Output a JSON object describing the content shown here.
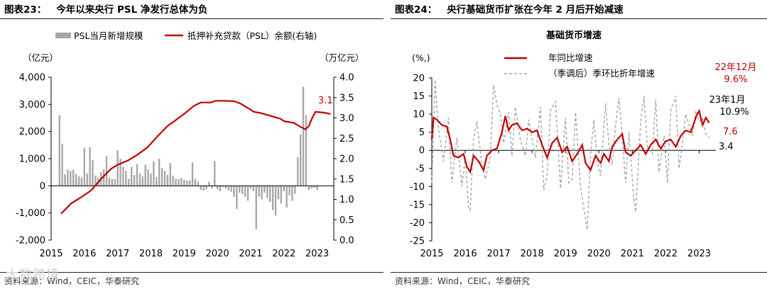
{
  "colors": {
    "red": "#c00000",
    "gray_bar": "#a6a6a6",
    "gray_dash": "#a6a6a6",
    "axis": "#000000"
  },
  "left": {
    "fig_num": "图表23：",
    "fig_title": "今年以来央行 PSL 净发行总体为负",
    "legend_bar": "PSL当月新增规模",
    "legend_line": "抵押补充贷款（PSL）余额(右轴)",
    "y_unit_left": "（亿元）",
    "y_unit_right": "（万亿元）",
    "end_label": "3.1",
    "source": "资料来源：Wind，CEIC，华泰研究"
  },
  "right": {
    "fig_num": "图表24：",
    "fig_title": "央行基础货币扩张在今年 2 月后开始减速",
    "chart_title": "基础货币增速",
    "y_unit": "(%,)",
    "legend_solid": "年同比增速",
    "legend_dash": "（季调后）季环比折年增速",
    "ann_dec_label": "22年12月",
    "ann_dec_value": "9.6%",
    "ann_jan_label": "23年1月",
    "ann_jan_value": "10.9%",
    "ann_last_solid": "7.6",
    "ann_last_dash": "3.4",
    "source": "资料来源：Wind，CEIC，华泰研究"
  },
  "watermark": "大数跨境",
  "chart_data": [
    {
      "type": "bar+line",
      "title": "今年以来央行 PSL 净发行总体为负",
      "x_ticks": [
        "2015",
        "2016",
        "2017",
        "2018",
        "2019",
        "2020",
        "2021",
        "2022",
        "2023"
      ],
      "x_start_year": 2015.0,
      "x_end_year": 2023.5,
      "ylim_left": [
        -2000,
        4000
      ],
      "yticks_left": [
        4000,
        3000,
        2000,
        1000,
        0,
        -1000,
        -2000
      ],
      "ytick_labels_left": [
        "4,000",
        "3,000",
        "2,000",
        "1,000",
        "0",
        "-1,000",
        "-2,000"
      ],
      "ylim_right": [
        0.0,
        4.0
      ],
      "yticks_right": [
        4.0,
        3.5,
        3.0,
        2.5,
        2.0,
        1.5,
        1.0,
        0.5,
        0.0
      ],
      "ytick_labels_right": [
        "4.0",
        "3.5",
        "3.0",
        "2.5",
        "2.0",
        "1.5",
        "1.0",
        "0.5",
        "0.0"
      ],
      "bar_series": {
        "name": "PSL当月新增规模",
        "start": 2015.25,
        "step": 0.0833333,
        "values": [
          2600,
          1550,
          430,
          600,
          550,
          600,
          430,
          350,
          300,
          1400,
          450,
          1420,
          950,
          380,
          300,
          500,
          600,
          1100,
          300,
          250,
          250,
          1300,
          1000,
          700,
          550,
          250,
          700,
          400,
          800,
          450,
          350,
          780,
          600,
          450,
          900,
          320,
          1000,
          650,
          550,
          400,
          840,
          370,
          250,
          250,
          280,
          230,
          200,
          200,
          860,
          250,
          150,
          -150,
          -180,
          -120,
          150,
          -100,
          920,
          -120,
          -200,
          -50,
          -100,
          -180,
          -220,
          -400,
          -850,
          -250,
          -300,
          -400,
          -550,
          -100,
          -200,
          -1600,
          -400,
          -500,
          -250,
          -450,
          -600,
          -900,
          -1100,
          -500,
          -650,
          -200,
          -800,
          -350,
          -550,
          -300,
          1050,
          1900,
          3650,
          2600,
          -150,
          -100,
          -80,
          -150
        ]
      },
      "line_series": {
        "name": "抵押补充贷款（PSL）余额(右轴)",
        "points": [
          [
            2015.3,
            0.65
          ],
          [
            2015.6,
            0.9
          ],
          [
            2015.9,
            1.05
          ],
          [
            2016.2,
            1.22
          ],
          [
            2016.5,
            1.5
          ],
          [
            2016.8,
            1.75
          ],
          [
            2017.0,
            1.85
          ],
          [
            2017.3,
            1.95
          ],
          [
            2017.6,
            2.1
          ],
          [
            2017.9,
            2.28
          ],
          [
            2018.2,
            2.55
          ],
          [
            2018.5,
            2.8
          ],
          [
            2018.8,
            2.98
          ],
          [
            2019.0,
            3.1
          ],
          [
            2019.3,
            3.3
          ],
          [
            2019.5,
            3.38
          ],
          [
            2019.8,
            3.38
          ],
          [
            2019.95,
            3.42
          ],
          [
            2020.2,
            3.42
          ],
          [
            2020.5,
            3.41
          ],
          [
            2020.7,
            3.35
          ],
          [
            2020.9,
            3.25
          ],
          [
            2021.1,
            3.15
          ],
          [
            2021.3,
            3.12
          ],
          [
            2021.6,
            3.05
          ],
          [
            2021.9,
            2.98
          ],
          [
            2022.0,
            2.92
          ],
          [
            2022.3,
            2.88
          ],
          [
            2022.5,
            2.78
          ],
          [
            2022.65,
            2.72
          ],
          [
            2022.75,
            2.8
          ],
          [
            2022.85,
            3.0
          ],
          [
            2022.95,
            3.15
          ],
          [
            2023.2,
            3.13
          ],
          [
            2023.4,
            3.1
          ]
        ]
      }
    },
    {
      "type": "line",
      "title": "基础货币增速",
      "x_ticks": [
        "2015",
        "2016",
        "2017",
        "2018",
        "2019",
        "2020",
        "2021",
        "2022",
        "2023"
      ],
      "x_start_year": 2015.0,
      "x_end_year": 2023.5,
      "ylim": [
        -25,
        20
      ],
      "yticks": [
        20,
        15,
        10,
        5,
        0,
        -5,
        -10,
        -15,
        -20,
        -25
      ],
      "ytick_labels": [
        "20",
        "15",
        "10",
        "5",
        "0",
        "-5",
        "-10",
        "-15",
        "-20",
        "-25"
      ],
      "series": [
        {
          "name": "年同比增速",
          "style": "solid",
          "points": [
            [
              2015.0,
              3.0
            ],
            [
              2015.05,
              9.0
            ],
            [
              2015.15,
              8.5
            ],
            [
              2015.3,
              7.0
            ],
            [
              2015.45,
              6.5
            ],
            [
              2015.55,
              3.0
            ],
            [
              2015.65,
              -1.5
            ],
            [
              2015.8,
              -2.0
            ],
            [
              2015.95,
              -1.0
            ],
            [
              2016.05,
              -4.5
            ],
            [
              2016.15,
              -6.0
            ],
            [
              2016.25,
              -1.5
            ],
            [
              2016.4,
              -3.0
            ],
            [
              2016.55,
              -5.5
            ],
            [
              2016.65,
              -1.5
            ],
            [
              2016.8,
              0.0
            ],
            [
              2016.95,
              0.5
            ],
            [
              2017.1,
              5.0
            ],
            [
              2017.2,
              9.5
            ],
            [
              2017.3,
              5.5
            ],
            [
              2017.4,
              7.0
            ],
            [
              2017.55,
              7.5
            ],
            [
              2017.7,
              5.5
            ],
            [
              2017.85,
              6.0
            ],
            [
              2018.0,
              5.0
            ],
            [
              2018.15,
              5.5
            ],
            [
              2018.3,
              1.5
            ],
            [
              2018.45,
              -2.0
            ],
            [
              2018.6,
              2.0
            ],
            [
              2018.75,
              3.5
            ],
            [
              2018.9,
              -0.5
            ],
            [
              2019.05,
              1.0
            ],
            [
              2019.2,
              -3.0
            ],
            [
              2019.35,
              -1.0
            ],
            [
              2019.5,
              1.5
            ],
            [
              2019.6,
              -3.5
            ],
            [
              2019.75,
              -5.5
            ],
            [
              2019.9,
              -1.5
            ],
            [
              2020.05,
              -3.5
            ],
            [
              2020.15,
              -1.0
            ],
            [
              2020.3,
              -3.0
            ],
            [
              2020.4,
              1.0
            ],
            [
              2020.55,
              3.0
            ],
            [
              2020.7,
              4.5
            ],
            [
              2020.8,
              -0.5
            ],
            [
              2020.95,
              -1.5
            ],
            [
              2021.1,
              0.0
            ],
            [
              2021.25,
              1.5
            ],
            [
              2021.4,
              -1.0
            ],
            [
              2021.55,
              1.5
            ],
            [
              2021.7,
              3.0
            ],
            [
              2021.85,
              0.5
            ],
            [
              2022.0,
              2.5
            ],
            [
              2022.15,
              3.0
            ],
            [
              2022.3,
              1.0
            ],
            [
              2022.45,
              4.0
            ],
            [
              2022.6,
              5.5
            ],
            [
              2022.75,
              5.0
            ],
            [
              2022.92,
              9.6
            ],
            [
              2023.0,
              10.9
            ],
            [
              2023.1,
              7.0
            ],
            [
              2023.2,
              9.0
            ],
            [
              2023.3,
              7.6
            ]
          ]
        },
        {
          "name": "（季调后）季环比折年增速",
          "style": "dashed",
          "points": [
            [
              2015.0,
              -9.0
            ],
            [
              2015.1,
              19.5
            ],
            [
              2015.2,
              6.0
            ],
            [
              2015.35,
              -3.0
            ],
            [
              2015.5,
              9.0
            ],
            [
              2015.6,
              -9.0
            ],
            [
              2015.75,
              3.5
            ],
            [
              2015.9,
              -10.0
            ],
            [
              2016.0,
              -2.0
            ],
            [
              2016.1,
              -16.0
            ],
            [
              2016.15,
              -16.5
            ],
            [
              2016.25,
              3.0
            ],
            [
              2016.35,
              8.0
            ],
            [
              2016.5,
              -4.0
            ],
            [
              2016.6,
              -8.0
            ],
            [
              2016.75,
              -2.0
            ],
            [
              2016.85,
              18.0
            ],
            [
              2016.95,
              12.5
            ],
            [
              2017.05,
              10.0
            ],
            [
              2017.15,
              2.0
            ],
            [
              2017.3,
              10.5
            ],
            [
              2017.4,
              -1.5
            ],
            [
              2017.5,
              12.0
            ],
            [
              2017.65,
              3.0
            ],
            [
              2017.8,
              -1.5
            ],
            [
              2017.9,
              8.5
            ],
            [
              2018.0,
              3.0
            ],
            [
              2018.1,
              -2.0
            ],
            [
              2018.25,
              12.0
            ],
            [
              2018.35,
              -11.0
            ],
            [
              2018.45,
              -7.0
            ],
            [
              2018.55,
              11.0
            ],
            [
              2018.7,
              13.5
            ],
            [
              2018.85,
              -10.5
            ],
            [
              2019.0,
              9.0
            ],
            [
              2019.1,
              -9.0
            ],
            [
              2019.2,
              -8.0
            ],
            [
              2019.3,
              10.5
            ],
            [
              2019.45,
              -10.0
            ],
            [
              2019.55,
              -16.0
            ],
            [
              2019.65,
              -22.0
            ],
            [
              2019.75,
              -1.0
            ],
            [
              2019.85,
              8.5
            ],
            [
              2019.95,
              -3.0
            ],
            [
              2020.05,
              -7.0
            ],
            [
              2020.2,
              13.0
            ],
            [
              2020.3,
              1.5
            ],
            [
              2020.4,
              -4.0
            ],
            [
              2020.5,
              7.0
            ],
            [
              2020.6,
              14.5
            ],
            [
              2020.7,
              4.0
            ],
            [
              2020.8,
              -9.0
            ],
            [
              2020.9,
              5.0
            ],
            [
              2021.05,
              -14.0
            ],
            [
              2021.1,
              -17.0
            ],
            [
              2021.25,
              8.0
            ],
            [
              2021.35,
              15.0
            ],
            [
              2021.45,
              1.0
            ],
            [
              2021.6,
              -1.0
            ],
            [
              2021.7,
              14.0
            ],
            [
              2021.8,
              -6.0
            ],
            [
              2021.95,
              4.0
            ],
            [
              2022.05,
              -9.0
            ],
            [
              2022.15,
              11.0
            ],
            [
              2022.3,
              15.0
            ],
            [
              2022.4,
              -5.0
            ],
            [
              2022.5,
              2.0
            ],
            [
              2022.6,
              10.0
            ],
            [
              2022.7,
              7.0
            ],
            [
              2022.8,
              4.0
            ],
            [
              2022.9,
              11.0
            ],
            [
              2023.0,
              8.0
            ],
            [
              2023.1,
              9.0
            ],
            [
              2023.2,
              4.5
            ],
            [
              2023.3,
              3.4
            ]
          ]
        }
      ]
    }
  ]
}
